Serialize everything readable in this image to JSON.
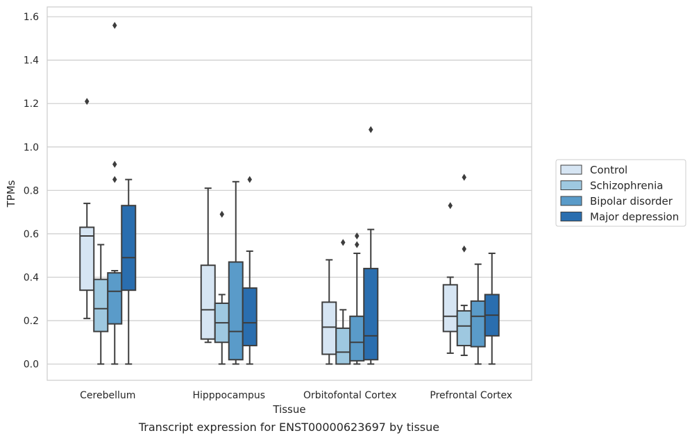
{
  "caption": "Transcript expression for ENST00000623697 by tissue",
  "chart_data": {
    "type": "box",
    "xlabel": "Tissue",
    "ylabel": "TPMs",
    "ylim": [
      -0.075,
      1.645
    ],
    "yticks": [
      0.0,
      0.2,
      0.4,
      0.6,
      0.8,
      1.0,
      1.2,
      1.4,
      1.6
    ],
    "ytick_labels": [
      "0.0",
      "0.2",
      "0.4",
      "0.6",
      "0.8",
      "1.0",
      "1.2",
      "1.4",
      "1.6"
    ],
    "grid": "horizontal",
    "legend_position": "right",
    "categories": [
      "Cerebellum",
      "Hipppocampus",
      "Orbitofontal Cortex",
      "Prefrontal Cortex"
    ],
    "series": [
      {
        "name": "Control",
        "color": "#d6e5f3",
        "boxes": [
          {
            "whisker_low": 0.21,
            "q1": 0.34,
            "median": 0.59,
            "q3": 0.63,
            "whisker_high": 0.74,
            "outliers": [
              1.21
            ]
          },
          {
            "whisker_low": 0.1,
            "q1": 0.115,
            "median": 0.25,
            "q3": 0.455,
            "whisker_high": 0.81,
            "outliers": []
          },
          {
            "whisker_low": 0.0,
            "q1": 0.045,
            "median": 0.17,
            "q3": 0.285,
            "whisker_high": 0.48,
            "outliers": []
          },
          {
            "whisker_low": 0.05,
            "q1": 0.15,
            "median": 0.22,
            "q3": 0.365,
            "whisker_high": 0.4,
            "outliers": [
              0.73
            ]
          }
        ]
      },
      {
        "name": "Schizophrenia",
        "color": "#9ec8e0",
        "boxes": [
          {
            "whisker_low": 0.0,
            "q1": 0.15,
            "median": 0.255,
            "q3": 0.39,
            "whisker_high": 0.55,
            "outliers": []
          },
          {
            "whisker_low": 0.0,
            "q1": 0.1,
            "median": 0.19,
            "q3": 0.28,
            "whisker_high": 0.32,
            "outliers": [
              0.69
            ]
          },
          {
            "whisker_low": 0.0,
            "q1": 0.0,
            "median": 0.055,
            "q3": 0.165,
            "whisker_high": 0.25,
            "outliers": [
              0.56
            ]
          },
          {
            "whisker_low": 0.04,
            "q1": 0.085,
            "median": 0.175,
            "q3": 0.245,
            "whisker_high": 0.27,
            "outliers": [
              0.53,
              0.86
            ]
          }
        ]
      },
      {
        "name": "Bipolar disorder",
        "color": "#5a9bc9",
        "boxes": [
          {
            "whisker_low": 0.0,
            "q1": 0.185,
            "median": 0.335,
            "q3": 0.42,
            "whisker_high": 0.43,
            "outliers": [
              0.85,
              0.92,
              1.56
            ]
          },
          {
            "whisker_low": 0.0,
            "q1": 0.02,
            "median": 0.15,
            "q3": 0.47,
            "whisker_high": 0.84,
            "outliers": []
          },
          {
            "whisker_low": 0.0,
            "q1": 0.015,
            "median": 0.1,
            "q3": 0.22,
            "whisker_high": 0.51,
            "outliers": [
              0.55,
              0.59
            ]
          },
          {
            "whisker_low": 0.0,
            "q1": 0.08,
            "median": 0.22,
            "q3": 0.29,
            "whisker_high": 0.46,
            "outliers": []
          }
        ]
      },
      {
        "name": "Major depression",
        "color": "#2a6eaf",
        "boxes": [
          {
            "whisker_low": 0.0,
            "q1": 0.34,
            "median": 0.49,
            "q3": 0.73,
            "whisker_high": 0.85,
            "outliers": []
          },
          {
            "whisker_low": 0.0,
            "q1": 0.085,
            "median": 0.19,
            "q3": 0.35,
            "whisker_high": 0.52,
            "outliers": [
              0.85
            ]
          },
          {
            "whisker_low": 0.0,
            "q1": 0.02,
            "median": 0.13,
            "q3": 0.44,
            "whisker_high": 0.62,
            "outliers": [
              1.08
            ]
          },
          {
            "whisker_low": 0.0,
            "q1": 0.13,
            "median": 0.225,
            "q3": 0.32,
            "whisker_high": 0.51,
            "outliers": []
          }
        ]
      }
    ]
  }
}
